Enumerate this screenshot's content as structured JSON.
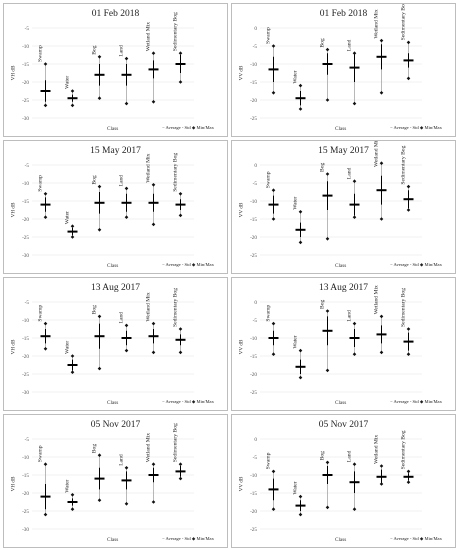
{
  "legend": {
    "avg_label": "Average",
    "std_label": "- Std",
    "minmax_label": "Min/Max"
  },
  "chart_data": [
    {
      "type": "boxplot-range",
      "title": "01 Feb 2018",
      "ylabel": "VH dB",
      "xlabel": "Class",
      "ylim": [
        -30,
        -5
      ],
      "yticks": [
        -5,
        -10,
        -15,
        -20,
        -25,
        -30
      ],
      "categories": [
        "Swamp",
        "Water",
        "Bog",
        "Land",
        "Wetland Mix",
        "Sedimentary Bog"
      ],
      "avg": [
        -22.5,
        -24.5,
        -18,
        -18,
        -16.5,
        -15
      ],
      "std": [
        3,
        1,
        3,
        3,
        2.5,
        2.5
      ],
      "min": [
        -26.5,
        -26.5,
        -24.5,
        -26,
        -25.5,
        -20
      ],
      "max": [
        -15,
        -22.5,
        -13,
        -13.5,
        -12,
        -12
      ]
    },
    {
      "type": "boxplot-range",
      "title": "01 Feb 2018",
      "ylabel": "VV dB",
      "xlabel": "Class",
      "ylim": [
        -25,
        0
      ],
      "yticks": [
        0,
        -5,
        -10,
        -15,
        -20,
        -25
      ],
      "categories": [
        "Swamp",
        "Water",
        "Bog",
        "Land",
        "Wetland Mix",
        "Sedimentary Bog"
      ],
      "avg": [
        -11.5,
        -19.5,
        -10,
        -11,
        -8,
        -9
      ],
      "std": [
        3.5,
        2,
        3,
        4,
        3.5,
        2
      ],
      "min": [
        -18,
        -22.5,
        -20,
        -21,
        -18,
        -14
      ],
      "max": [
        -5,
        -16,
        -6,
        -7,
        -3.5,
        -4
      ]
    },
    {
      "type": "boxplot-range",
      "title": "15 May 2017",
      "ylabel": "VH dB",
      "xlabel": "Class",
      "ylim": [
        -30,
        -5
      ],
      "yticks": [
        -5,
        -10,
        -15,
        -20,
        -25,
        -30
      ],
      "categories": [
        "Swamp",
        "Water",
        "Bog",
        "Land",
        "Wetland Mix",
        "Sedimentary Bog"
      ],
      "avg": [
        -16,
        -23.5,
        -15.5,
        -15.5,
        -15.5,
        -16
      ],
      "std": [
        2,
        1,
        3,
        2.5,
        2.5,
        1.5
      ],
      "min": [
        -19.5,
        -25,
        -23,
        -19.5,
        -21.5,
        -19
      ],
      "max": [
        -13,
        -22,
        -11,
        -11.5,
        -10.5,
        -13
      ]
    },
    {
      "type": "boxplot-range",
      "title": "15 May 2017",
      "ylabel": "VV dB",
      "xlabel": "Class",
      "ylim": [
        -25,
        0
      ],
      "yticks": [
        0,
        -5,
        -10,
        -15,
        -20,
        -25
      ],
      "categories": [
        "Swamp",
        "Water",
        "Bog",
        "Land",
        "Wetland Mix",
        "Sedimentary Bog"
      ],
      "avg": [
        -11,
        -18,
        -8.5,
        -11,
        -7,
        -9.5
      ],
      "std": [
        2.5,
        2,
        4,
        3,
        4,
        2.5
      ],
      "min": [
        -15,
        -21.5,
        -20.5,
        -14.5,
        -15,
        -12.5
      ],
      "max": [
        -7,
        -13,
        -2.5,
        -4.5,
        0.5,
        -6
      ]
    },
    {
      "type": "boxplot-range",
      "title": "13 Aug 2017",
      "ylabel": "VH dB",
      "xlabel": "Class",
      "ylim": [
        -30,
        -5
      ],
      "yticks": [
        -5,
        -10,
        -15,
        -20,
        -25,
        -30
      ],
      "categories": [
        "Swamp",
        "Water",
        "Bog",
        "Land",
        "Wetland Mix",
        "Sedimentary Bog"
      ],
      "avg": [
        -14.5,
        -22.5,
        -14.5,
        -15,
        -14.5,
        -15.5
      ],
      "std": [
        2,
        1.5,
        3.5,
        2,
        2,
        1.5
      ],
      "min": [
        -18,
        -24.5,
        -23.5,
        -18.5,
        -19,
        -19
      ],
      "max": [
        -11,
        -20,
        -9,
        -11.5,
        -11,
        -12.5
      ]
    },
    {
      "type": "boxplot-range",
      "title": "13 Aug 2017",
      "ylabel": "VV dB",
      "xlabel": "Class",
      "ylim": [
        -25,
        0
      ],
      "yticks": [
        0,
        -5,
        -10,
        -15,
        -20,
        -25
      ],
      "categories": [
        "Swamp",
        "Water",
        "Bog",
        "Land",
        "Wetland Mix",
        "Sedimentary Bog"
      ],
      "avg": [
        -10,
        -18,
        -8,
        -10,
        -9,
        -11
      ],
      "std": [
        2,
        2,
        4,
        2.5,
        2.5,
        2.5
      ],
      "min": [
        -14.5,
        -21,
        -19,
        -14.5,
        -14,
        -14.5
      ],
      "max": [
        -6,
        -13.5,
        -2.5,
        -6,
        -4,
        -7.5
      ]
    },
    {
      "type": "boxplot-range",
      "title": "05 Nov 2017",
      "ylabel": "VH dB",
      "xlabel": "Class",
      "ylim": [
        -30,
        -5
      ],
      "yticks": [
        -5,
        -10,
        -15,
        -20,
        -25,
        -30
      ],
      "categories": [
        "Swamp",
        "Water",
        "Bog",
        "Land",
        "Wetland Mix",
        "Sedimentary Bog"
      ],
      "avg": [
        -21,
        -22.5,
        -16,
        -16.5,
        -15,
        -14
      ],
      "std": [
        3.5,
        1,
        3,
        2.5,
        2,
        1.5
      ],
      "min": [
        -26,
        -24.5,
        -22,
        -23,
        -22.5,
        -16
      ],
      "max": [
        -12,
        -20.5,
        -9.5,
        -13,
        -12,
        -12
      ]
    },
    {
      "type": "boxplot-range",
      "title": "05 Nov 2017",
      "ylabel": "VV dB",
      "xlabel": "Class",
      "ylim": [
        -25,
        0
      ],
      "yticks": [
        0,
        -5,
        -10,
        -15,
        -20,
        -25
      ],
      "categories": [
        "Swamp",
        "Water",
        "Bog",
        "Land",
        "Wetland Mix",
        "Sedimentary Bog"
      ],
      "avg": [
        -14,
        -18.5,
        -10,
        -12,
        -10.5,
        -10.5
      ],
      "std": [
        3,
        1.5,
        2.5,
        3,
        2,
        1
      ],
      "min": [
        -19.5,
        -21,
        -19,
        -19.5,
        -12.5,
        -12
      ],
      "max": [
        -9,
        -16,
        -6.5,
        -7,
        -7.5,
        -9
      ]
    }
  ]
}
